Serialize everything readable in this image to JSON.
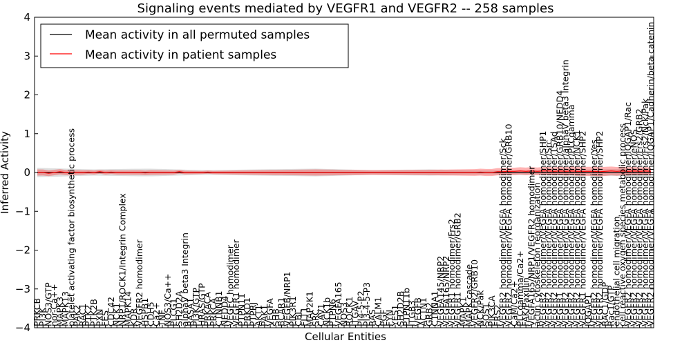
{
  "chart_data": {
    "type": "line",
    "title": "Signaling events mediated by VEGFR1 and VEGFR2 -- 258 samples",
    "xlabel": "Cellular Entities",
    "ylabel": "Inferred Activity",
    "ylim": [
      -4,
      4
    ],
    "yticks": [
      "4",
      "3",
      "2",
      "1",
      "0",
      "−1",
      "−2",
      "−3",
      "−4"
    ],
    "ytick_values": [
      4,
      3,
      2,
      1,
      0,
      -1,
      -2,
      -3,
      -4
    ],
    "legend": {
      "placement": "top-left",
      "entries": [
        {
          "label": "Mean activity in all permuted samples",
          "color": "#000000"
        },
        {
          "label": "Mean activity in patient samples",
          "color": "#ff0000"
        }
      ]
    },
    "categories": [
      "PRKCB",
      "PI3K",
      "NOS3/GTP",
      "nor-Ca++",
      "MAPK3",
      "MAPK13",
      "platelet activating factor biosynthetic process",
      "PAK2",
      "RAC1",
      "PTK2",
      "PTK2B",
      "PXN",
      "FES",
      "CDC42",
      "NCK1",
      "NRP1/ROCK1/Integrin Complex",
      "MAPK14",
      "KDR",
      "VEGFR2 homodimer",
      "HSPB1",
      "CDH5",
      "Ca2+",
      "TNF",
      "NOS3/Ca++",
      "PLCG1",
      "SH2D2A",
      "alphaV beta3 Integrin",
      "RASA1",
      "PI3K/GTP",
      "HRAS/GTP",
      "PRKACA",
      "PRKCA",
      "CTNNB1",
      "NEDD4",
      "VEGFC homodimer",
      "VEGFR1 homodimer",
      "PTPN11",
      "PRKD1",
      "PTPRJ",
      "AKT1",
      "PAK1",
      "VEGFA",
      "SHB",
      "BCAR1",
      "VEGFB/NRP1",
      "PIK3R1",
      "CBL",
      "FLT1",
      "MAP2K1",
      "SRC",
      "CAV1",
      "NCK1b",
      "PTPN6",
      "VEGFA165",
      "NOS3",
      "ROCK1",
      "ITGAV",
      "PI4-5-P2",
      "PI3-4-5-P3",
      "RAS",
      "CALM1",
      "PGF",
      "FYN",
      "YES1",
      "SH2D2B",
      "PTPN11b",
      "ITGB3",
      "VEGFB",
      "ACTN1",
      "GRB2",
      "CTNNA1",
      "VEGFA145/NRP2",
      "VEGFA165/NRP2",
      "VEGFR1 homodimer/Frs2",
      "VEGFR1 homodimer/GRB2",
      "MAPK1",
      "MAPK cascade",
      "VEGFR2/GRB10",
      "NCK/Pak",
      "SOS1",
      "PIK3CA",
      "FRS2",
      "VEGFR2 homodimer/VEGFA homodimer/Sck",
      "VEGFR2 homodimer/VEGFA homodimer/GRB10",
      "CaM/Ca2+",
      "PLCgamma/Ca2+",
      "FAK/Paxillin",
      "VEGFA165/NRP1/VEGFR2 homodimer",
      "actin cytoskeleton reorganization",
      "VEGFR2 homodimer/VEGFA homodimer/SHP1",
      "VEGFR2 homodimer/VEGFA homodimer/Src",
      "VEGFR2 homodimer/VEGFA homodimer/TSAd",
      "VEGFR1 homodimer/VEGFA homodimer/GRB10/NEDD4",
      "VEGFR2 homodimer/VEGFA homodimer/alphaV beta3 Integrin",
      "VEGFR2 homodimer/VEGFA homodimer/PLCgamma",
      "VEGFR2 homodimer/VEGFA homodimer/NCK1",
      "VEGFR1 homodimer/VEGFA homodimer/SHP2",
      "IQGAP1",
      "VEGFR2 homodimer/VEGFA homodimer/Yes",
      "VEGFR2 homodimer/VEGFA homodimer/SHP2",
      "RAC1/GDP",
      "Rac1/GTP",
      "endothelial cell migration",
      "cell reactive oxygen species metabolic process",
      "VEGFR2 homodimer/VEGFA homodimer/IQGAP1/Rac",
      "VEGFR2 homodimer/VEGFA homodimer/eNOS",
      "VEGFR2 homodimer/VEGFA homodimer/Frs2/GRB2",
      "VEGFR2 homodimer/VEGFA homodimer/Frs2/Nck/Pak",
      "VEGFR2 homodimer/VEGFA homodimer/IQGAP1/Cadherin/beta catenin"
    ],
    "series": [
      {
        "name": "Mean activity in all permuted samples",
        "color": "#000000",
        "values": [
          0.0,
          0.0,
          0.0,
          0.0,
          0.0,
          0.0,
          0.0,
          0.0,
          0.0,
          0.0,
          0.0,
          0.0,
          0.0,
          0.0,
          0.0,
          0.0,
          0.0,
          0.0,
          0.0,
          0.0,
          0.0,
          0.0,
          0.0,
          0.0,
          0.0,
          0.0,
          0.0,
          0.0,
          0.0,
          0.0,
          0.0,
          0.0,
          0.0,
          0.0,
          0.0,
          0.0,
          0.0,
          0.0,
          0.0,
          0.0,
          0.0,
          0.0,
          0.0,
          0.0,
          0.0,
          0.0,
          0.0,
          0.0,
          0.0,
          0.0,
          0.0,
          0.0,
          0.0,
          0.0,
          0.0,
          0.0,
          0.0,
          0.0,
          0.0,
          0.0,
          0.0,
          0.0,
          0.0,
          0.0,
          0.0,
          0.0,
          0.0,
          0.0,
          0.0,
          0.0,
          0.0,
          0.0,
          0.0,
          0.0,
          0.0,
          0.0,
          0.0,
          0.0,
          0.0,
          0.0,
          0.0,
          0.0,
          0.0,
          0.0,
          0.0,
          0.0,
          0.0,
          0.0,
          0.0,
          0.0,
          0.0,
          0.0,
          0.0,
          0.0,
          0.0,
          0.0,
          0.0,
          0.0,
          0.0,
          0.0,
          0.0,
          0.0,
          0.0,
          0.0,
          0.0,
          0.0,
          0.0,
          0.0,
          0.0
        ]
      },
      {
        "name": "Mean activity in patient samples",
        "color": "#ff0000",
        "values": [
          0.0,
          0.0,
          -0.02,
          0.0,
          0.02,
          0.0,
          -0.01,
          0.0,
          0.0,
          0.01,
          0.0,
          0.02,
          0.0,
          0.01,
          0.0,
          0.0,
          0.0,
          0.0,
          0.0,
          -0.01,
          0.0,
          0.0,
          0.0,
          0.0,
          0.0,
          0.02,
          0.0,
          0.0,
          0.0,
          0.0,
          0.01,
          0.0,
          0.0,
          0.0,
          0.0,
          0.0,
          0.0,
          0.0,
          0.0,
          0.0,
          0.0,
          0.0,
          0.0,
          0.0,
          0.0,
          0.0,
          0.0,
          0.0,
          0.0,
          0.0,
          0.0,
          0.0,
          0.0,
          0.0,
          0.0,
          0.0,
          0.0,
          0.0,
          0.0,
          0.0,
          0.0,
          0.0,
          0.0,
          0.0,
          0.0,
          0.0,
          0.0,
          0.0,
          0.0,
          0.0,
          0.0,
          0.0,
          0.0,
          0.0,
          0.0,
          0.0,
          0.0,
          0.0,
          0.01,
          0.0,
          0.0,
          0.02,
          0.02,
          0.03,
          0.03,
          0.04,
          0.03,
          0.04,
          0.03,
          0.04,
          0.04,
          0.03,
          0.04,
          0.03,
          0.04,
          0.03,
          0.03,
          0.03,
          0.03,
          0.02,
          0.03,
          0.04,
          0.03,
          0.04,
          0.03,
          0.04,
          0.03,
          0.04,
          0.03
        ]
      }
    ],
    "permuted_band": [
      0.12,
      0.08,
      0.1,
      0.06,
      0.08,
      0.1,
      0.06,
      0.08,
      0.05,
      0.06,
      0.08,
      0.1
    ],
    "patient_band": [
      0.08,
      0.05,
      0.06,
      0.04,
      0.06,
      0.08,
      0.06,
      0.07,
      0.09,
      0.1,
      0.12,
      0.1
    ]
  }
}
